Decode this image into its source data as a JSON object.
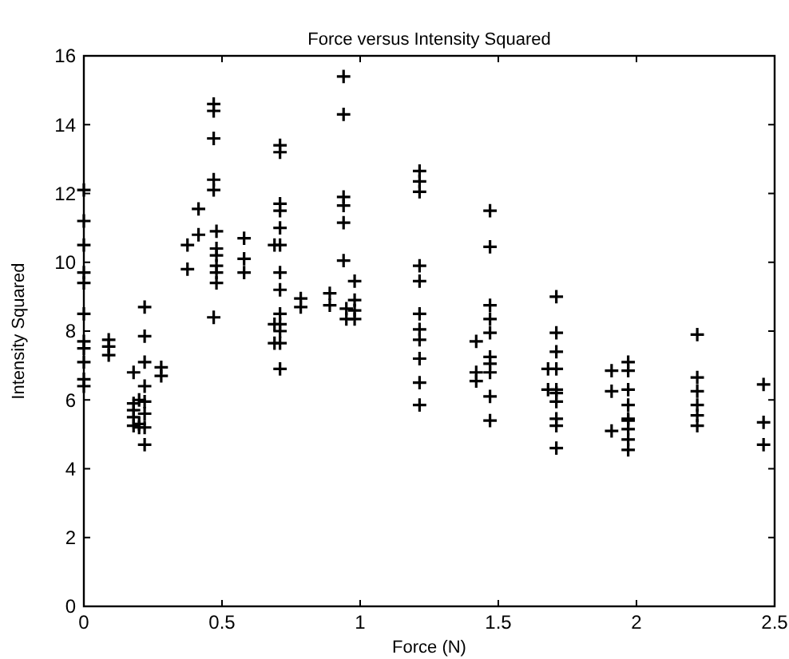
{
  "chart_data": {
    "type": "scatter",
    "title": "Force versus Intensity Squared",
    "xlabel": "Force (N)",
    "ylabel": "Intensity Squared",
    "xlim": [
      0,
      2.5
    ],
    "xticks": [
      0,
      0.5,
      1,
      1.5,
      2,
      2.5
    ],
    "ylim": [
      0,
      16
    ],
    "yticks": [
      0,
      2,
      4,
      6,
      8,
      10,
      12,
      14,
      16
    ],
    "grid": false,
    "marker": "cross",
    "series": [
      {
        "color": "#000000",
        "x": [
          0,
          0,
          0,
          0,
          0,
          0,
          0,
          0,
          0,
          0,
          0,
          0.09,
          0.09,
          0.09,
          0.18,
          0.18,
          0.18,
          0.18,
          0.18,
          0.2,
          0.2,
          0.2,
          0.22,
          0.22,
          0.22,
          0.22,
          0.22,
          0.22,
          0.22,
          0.22,
          0.28,
          0.28,
          0.375,
          0.375,
          0.415,
          0.415,
          0.47,
          0.47,
          0.47,
          0.47,
          0.47,
          0.47,
          0.48,
          0.48,
          0.48,
          0.48,
          0.48,
          0.48,
          0.58,
          0.58,
          0.58,
          0.71,
          0.71,
          0.71,
          0.71,
          0.71,
          0.71,
          0.71,
          0.71,
          0.71,
          0.71,
          0.71,
          0.71,
          0.71,
          0.69,
          0.69,
          0.69,
          0.785,
          0.785,
          0.89,
          0.89,
          0.94,
          0.94,
          0.94,
          0.94,
          0.94,
          0.94,
          0.98,
          0.98,
          0.98,
          0.98,
          0.95,
          0.95,
          1.215,
          1.215,
          1.215,
          1.215,
          1.215,
          1.215,
          1.215,
          1.215,
          1.215,
          1.215,
          1.215,
          1.47,
          1.47,
          1.47,
          1.47,
          1.47,
          1.42,
          1.42,
          1.42,
          1.47,
          1.47,
          1.47,
          1.47,
          1.47,
          1.71,
          1.71,
          1.71,
          1.71,
          1.71,
          1.71,
          1.71,
          1.71,
          1.71,
          1.71,
          1.68,
          1.68,
          1.91,
          1.91,
          1.91,
          1.97,
          1.97,
          1.97,
          1.97,
          1.97,
          1.97,
          1.97,
          1.97,
          1.97,
          2.22,
          2.22,
          2.22,
          2.22,
          2.22,
          2.22,
          2.46,
          2.46,
          2.46
        ],
        "values": [
          12.1,
          11.2,
          10.5,
          9.7,
          9.4,
          8.5,
          7.7,
          7.5,
          7.1,
          6.6,
          6.4,
          7.75,
          7.55,
          7.3,
          6.8,
          5.9,
          5.7,
          5.5,
          5.25,
          6,
          5.3,
          5.2,
          8.7,
          7.85,
          7.1,
          6.4,
          5.95,
          5.6,
          5.2,
          4.7,
          6.95,
          6.7,
          10.5,
          9.8,
          11.55,
          10.8,
          14.6,
          14.4,
          13.6,
          12.4,
          12.1,
          8.4,
          10.9,
          10.4,
          10.2,
          9.9,
          9.7,
          9.4,
          10.7,
          10.1,
          9.7,
          13.4,
          13.2,
          11.7,
          11.5,
          11,
          10.5,
          9.7,
          9.2,
          8.5,
          8.2,
          8,
          7.65,
          6.9,
          10.5,
          8.2,
          7.65,
          8.95,
          8.7,
          9.1,
          8.75,
          15.4,
          14.3,
          11.9,
          11.65,
          11.15,
          10.05,
          9.45,
          8.9,
          8.6,
          8.35,
          8.65,
          8.35,
          12.65,
          12.35,
          12.05,
          9.9,
          9.45,
          8.5,
          8.05,
          7.75,
          7.2,
          6.5,
          5.85,
          11.5,
          10.45,
          8.75,
          8.35,
          7.95,
          7.7,
          6.8,
          6.55,
          7.25,
          7.05,
          6.8,
          6.1,
          5.4,
          9,
          7.95,
          7.4,
          6.9,
          6.3,
          6.2,
          5.95,
          5.45,
          5.25,
          4.6,
          6.9,
          6.3,
          6.85,
          6.25,
          5.1,
          7.1,
          6.85,
          6.3,
          5.85,
          5.45,
          5.4,
          5.15,
          4.85,
          4.55,
          7.9,
          6.65,
          6.25,
          5.85,
          5.55,
          5.25,
          6.45,
          5.35,
          4.7
        ]
      }
    ]
  }
}
